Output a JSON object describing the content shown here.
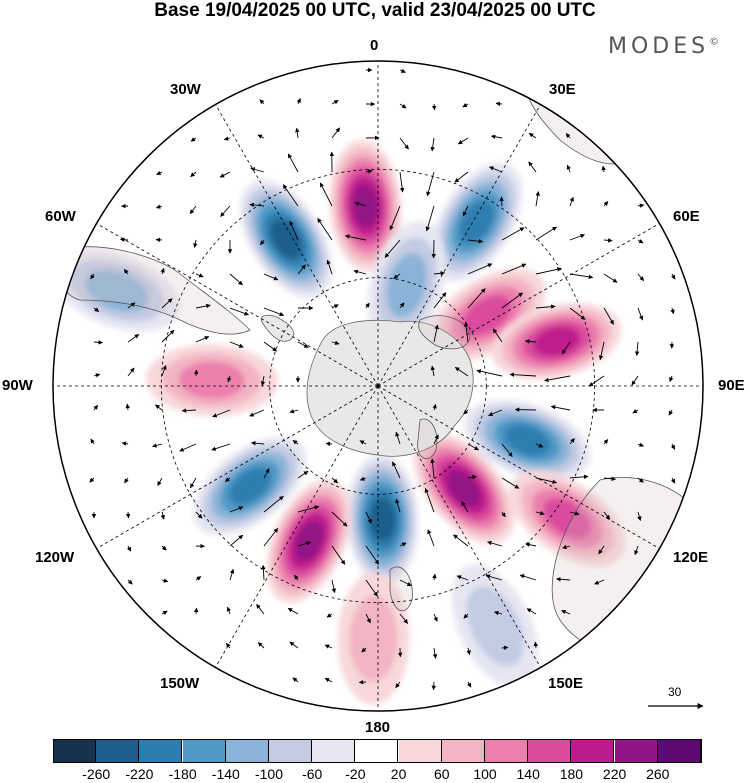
{
  "title": "Base 19/04/2025 00 UTC, valid 23/04/2025 00 UTC",
  "brand": "MODES",
  "brand_mark": "©",
  "longitude_labels": {
    "top": "0",
    "top_left": "30W",
    "top_right": "30E",
    "upper_left": "60W",
    "upper_right": "60E",
    "left": "90W",
    "right": "90E",
    "lower_left": "120W",
    "lower_right": "120E",
    "bottom_left": "150W",
    "bottom_right": "150E",
    "bottom": "180"
  },
  "reference_vector": {
    "value": "30",
    "icon": "right-arrow-icon"
  },
  "colorbar": {
    "colors": [
      "#17324f",
      "#1d5f8a",
      "#2d7db0",
      "#4f99c6",
      "#8bb3d8",
      "#c3cbe3",
      "#e6e6f2",
      "#ffffff",
      "#f8d8db",
      "#f3b4c3",
      "#ec7fad",
      "#da4b9d",
      "#bf1a8c",
      "#931486",
      "#5c0a72"
    ],
    "ticks": [
      "-260",
      "-220",
      "-180",
      "-140",
      "-100",
      "-60",
      "-20",
      "20",
      "60",
      "100",
      "140",
      "180",
      "220",
      "260"
    ]
  },
  "anomaly_centers": [
    {
      "sign": "negative",
      "peak": -220,
      "lon_deg": -32,
      "colat_deg": 48
    },
    {
      "sign": "positive",
      "peak": 240,
      "lon_deg": -4,
      "colat_deg": 50
    },
    {
      "sign": "negative",
      "peak": -200,
      "lon_deg": 31,
      "colat_deg": 53
    },
    {
      "sign": "negative",
      "peak": -100,
      "lon_deg": 16,
      "colat_deg": 29
    },
    {
      "sign": "positive",
      "peak": 160,
      "lon_deg": 57,
      "colat_deg": 36
    },
    {
      "sign": "positive",
      "peak": 200,
      "lon_deg": 76,
      "colat_deg": 51
    },
    {
      "sign": "negative",
      "peak": -180,
      "lon_deg": 110,
      "colat_deg": 44
    },
    {
      "sign": "positive",
      "peak": 140,
      "lon_deg": 125,
      "colat_deg": 64
    },
    {
      "sign": "positive",
      "peak": 220,
      "lon_deg": 140,
      "colat_deg": 37
    },
    {
      "sign": "negative",
      "peak": -220,
      "lon_deg": 178,
      "colat_deg": 37
    },
    {
      "sign": "positive",
      "peak": 240,
      "lon_deg": -156,
      "colat_deg": 47
    },
    {
      "sign": "negative",
      "peak": -180,
      "lon_deg": -128,
      "colat_deg": 45
    },
    {
      "sign": "positive",
      "peak": 120,
      "lon_deg": -88,
      "colat_deg": 46
    },
    {
      "sign": "negative",
      "peak": -100,
      "lon_deg": -70,
      "colat_deg": 77
    },
    {
      "sign": "negative",
      "peak": -60,
      "lon_deg": 154,
      "colat_deg": 74
    },
    {
      "sign": "positive",
      "peak": 80,
      "lon_deg": -179,
      "colat_deg": 70
    }
  ]
}
